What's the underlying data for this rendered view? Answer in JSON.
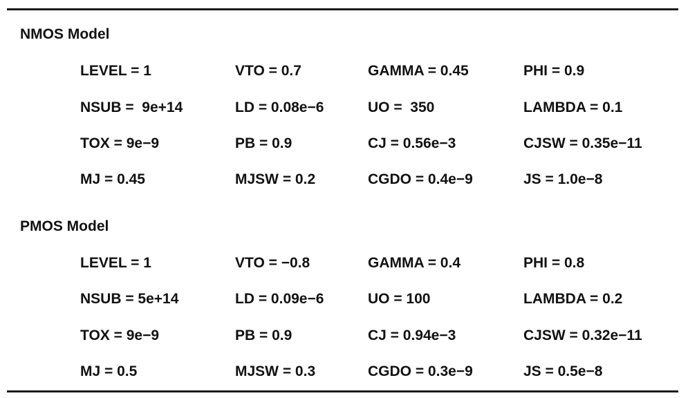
{
  "nmos": {
    "title": "NMOS Model",
    "rows": [
      [
        "LEVEL = 1",
        "VTO = 0.7",
        "GAMMA = 0.45",
        "PHI = 0.9"
      ],
      [
        "NSUB =  9e+14",
        "LD = 0.08e−6",
        "UO =  350",
        "LAMBDA = 0.1"
      ],
      [
        "TOX = 9e−9",
        "PB = 0.9",
        "CJ = 0.56e−3",
        "CJSW = 0.35e−11"
      ],
      [
        "MJ = 0.45",
        "MJSW = 0.2",
        "CGDO = 0.4e−9",
        "JS = 1.0e−8"
      ]
    ]
  },
  "pmos": {
    "title": "PMOS Model",
    "rows": [
      [
        "LEVEL = 1",
        "VTO = −0.8",
        "GAMMA = 0.4",
        "PHI = 0.8"
      ],
      [
        "NSUB = 5e+14",
        "LD = 0.09e−6",
        "UO = 100",
        "LAMBDA = 0.2"
      ],
      [
        "TOX = 9e−9",
        "PB = 0.9",
        "CJ = 0.94e−3",
        "CJSW = 0.32e−11"
      ],
      [
        "MJ = 0.5",
        "MJSW = 0.3",
        "CGDO = 0.3e−9",
        "JS = 0.5e−8"
      ]
    ]
  }
}
